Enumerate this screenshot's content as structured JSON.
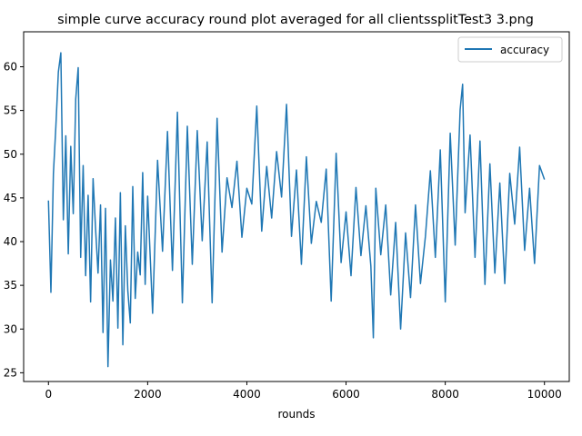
{
  "chart_data": {
    "type": "line",
    "title": "simple curve accuracy round plot averaged for all clientssplitTest3 3.png",
    "xlabel": "rounds",
    "ylabel": "",
    "xlim": [
      -500,
      10500
    ],
    "ylim": [
      24,
      64
    ],
    "xticks": [
      0,
      2000,
      4000,
      6000,
      8000,
      10000
    ],
    "yticks": [
      25,
      30,
      35,
      40,
      45,
      50,
      55,
      60
    ],
    "grid": false,
    "legend": "upper right",
    "color": "#1f77b4",
    "series": [
      {
        "name": "accuracy",
        "x": [
          0,
          50,
          100,
          150,
          200,
          250,
          300,
          350,
          400,
          450,
          500,
          550,
          600,
          650,
          700,
          750,
          800,
          850,
          900,
          950,
          1000,
          1050,
          1100,
          1150,
          1200,
          1250,
          1300,
          1350,
          1400,
          1450,
          1500,
          1550,
          1600,
          1650,
          1700,
          1750,
          1800,
          1850,
          1900,
          1950,
          2000,
          2100,
          2200,
          2300,
          2400,
          2500,
          2600,
          2700,
          2800,
          2900,
          3000,
          3100,
          3200,
          3300,
          3400,
          3500,
          3600,
          3700,
          3800,
          3900,
          4000,
          4100,
          4200,
          4300,
          4400,
          4500,
          4600,
          4700,
          4800,
          4900,
          5000,
          5100,
          5200,
          5300,
          5400,
          5500,
          5600,
          5700,
          5800,
          5900,
          6000,
          6100,
          6200,
          6300,
          6400,
          6500,
          6550,
          6600,
          6700,
          6800,
          6900,
          7000,
          7100,
          7200,
          7300,
          7400,
          7500,
          7600,
          7700,
          7800,
          7900,
          8000,
          8100,
          8200,
          8300,
          8350,
          8400,
          8500,
          8600,
          8700,
          8800,
          8900,
          9000,
          9100,
          9200,
          9300,
          9400,
          9500,
          9600,
          9700,
          9800,
          9900,
          10000
        ],
        "y": [
          44.7,
          34.2,
          47.8,
          53.2,
          59.4,
          61.6,
          42.5,
          52.1,
          38.6,
          50.9,
          43.2,
          56.3,
          59.9,
          38.2,
          48.7,
          36.1,
          45.3,
          33.1,
          47.2,
          41.5,
          36.4,
          44.2,
          29.6,
          43.8,
          25.7,
          37.9,
          33.2,
          42.7,
          30.1,
          45.6,
          28.2,
          41.8,
          34.4,
          30.7,
          46.3,
          33.5,
          38.8,
          36.2,
          47.9,
          35.1,
          45.2,
          31.8,
          49.3,
          38.9,
          52.6,
          36.7,
          54.8,
          33.0,
          53.2,
          37.4,
          52.7,
          40.1,
          51.4,
          33.0,
          54.1,
          38.8,
          47.3,
          43.9,
          49.2,
          40.5,
          46.1,
          44.3,
          55.5,
          41.2,
          48.6,
          42.7,
          50.3,
          45.1,
          55.7,
          40.6,
          48.2,
          37.4,
          49.7,
          39.8,
          44.6,
          42.2,
          48.3,
          33.2,
          50.1,
          37.6,
          43.4,
          36.1,
          46.2,
          38.4,
          44.1,
          37.2,
          29.0,
          46.1,
          38.5,
          44.2,
          33.9,
          42.2,
          30.0,
          41.0,
          33.6,
          44.2,
          35.2,
          40.6,
          48.1,
          38.2,
          50.5,
          33.1,
          52.4,
          39.6,
          55.1,
          58.0,
          43.3,
          52.2,
          38.2,
          51.5,
          35.1,
          48.9,
          36.4,
          46.7,
          35.2,
          47.8,
          42.0,
          50.8,
          39.0,
          46.1,
          37.5,
          48.7,
          47.1
        ]
      }
    ]
  }
}
